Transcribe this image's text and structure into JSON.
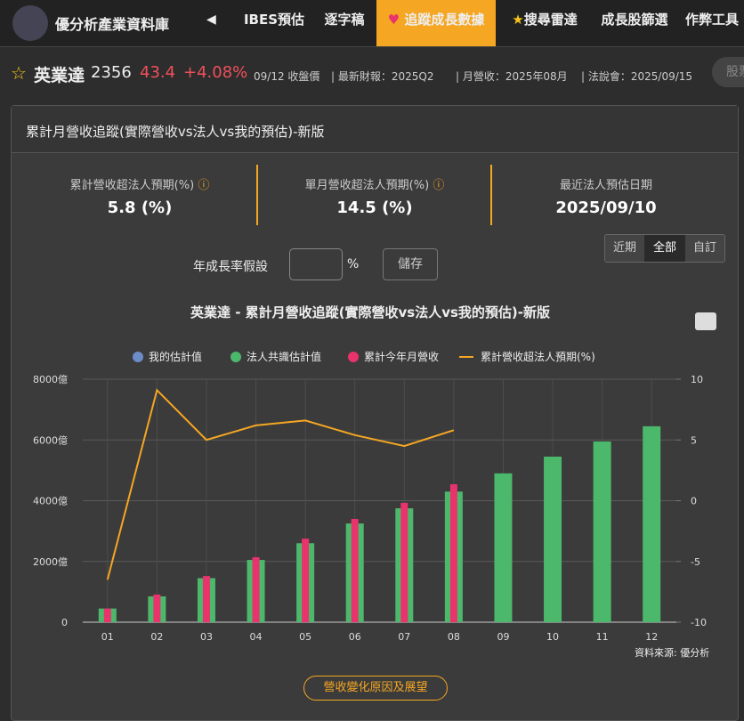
{
  "nav": {
    "logo": "優分析產業資料庫",
    "tabs": [
      "IBES預估",
      "逐字稿",
      "追蹤成長數據",
      "搜尋雷達",
      "成長股篩選",
      "作弊工具"
    ],
    "active": 2
  },
  "stock": {
    "name": "英業達",
    "code": "2356",
    "price": "43.4",
    "change": "+4.08%",
    "date": "09/12 收盤價",
    "info": [
      "最新財報：2025Q2",
      "月營收：2025年08月",
      "法說會：2025/09/15"
    ],
    "search": "股票"
  },
  "card": {
    "title": "累計月營收追蹤(實際營收vs法人vs我的預估)-新版",
    "stats": [
      {
        "label": "累計營收超法人預期(%)",
        "value": "5.8 (%)"
      },
      {
        "label": "單月營收超法人預期(%)",
        "value": "14.5 (%)"
      },
      {
        "label": "最近法人預估日期",
        "value": "2025/09/10"
      }
    ],
    "growth_label": "年成長率假設",
    "growth_unit": "%",
    "save": "儲存",
    "ranges": [
      "近期",
      "全部",
      "自訂"
    ],
    "source": "資料來源: 優分析",
    "outlook": "營收變化原因及展望"
  },
  "chart_data": {
    "type": "bar",
    "title": "英業達 - 累計月營收追蹤(實際營收vs法人vs我的預估)-新版",
    "categories": [
      "01",
      "02",
      "03",
      "04",
      "05",
      "06",
      "07",
      "08",
      "09",
      "10",
      "11",
      "12"
    ],
    "series": [
      {
        "name": "我的估計值",
        "color": "#6b8cc7",
        "values": [
          null,
          null,
          null,
          null,
          null,
          null,
          null,
          null,
          null,
          null,
          null,
          null
        ]
      },
      {
        "name": "法人共識估計值",
        "color": "#4cb86b",
        "values": [
          450,
          850,
          1450,
          2050,
          2600,
          3250,
          3750,
          4300,
          4900,
          5450,
          5950,
          6450
        ]
      },
      {
        "name": "累計今年月營收",
        "color": "#e8336d",
        "values": [
          450,
          910,
          1520,
          2140,
          2750,
          3400,
          3930,
          4540,
          null,
          null,
          null,
          null
        ]
      },
      {
        "name": "累計營收超法人預期(%)",
        "color": "#f5a623",
        "type": "line",
        "axis": "y2",
        "values": [
          -6.5,
          9.1,
          5.0,
          6.2,
          6.6,
          5.4,
          4.5,
          5.8,
          null,
          null,
          null,
          null
        ]
      }
    ],
    "ylim": [
      0,
      8000
    ],
    "yticks": [
      0,
      {
        "value": 2000,
        "label": "2000億"
      },
      {
        "value": 4000,
        "label": "4000億"
      },
      {
        "value": 6000,
        "label": "6000億"
      },
      {
        "value": 8000,
        "label": "8000億"
      }
    ],
    "y2lim": [
      -10,
      10
    ],
    "y2ticks": [
      -10,
      -5,
      0,
      5,
      10
    ],
    "grid": true
  }
}
